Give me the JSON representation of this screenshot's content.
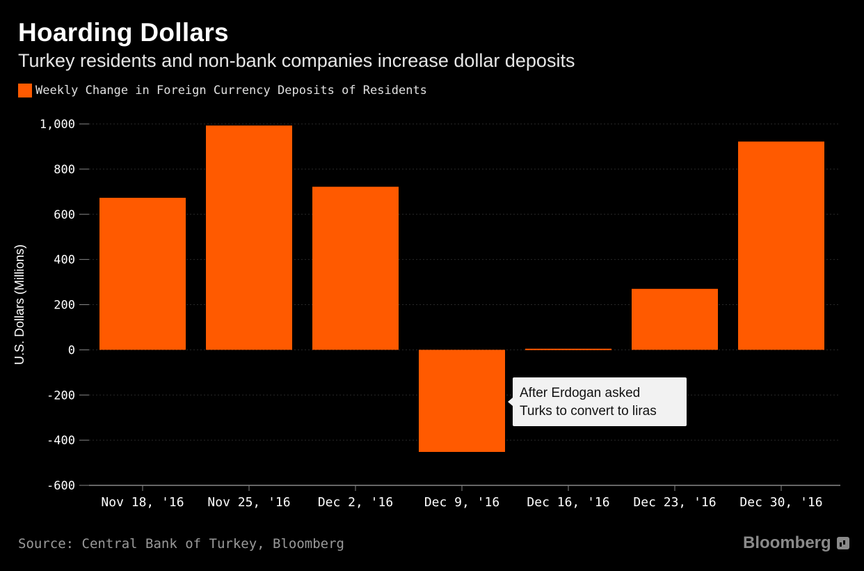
{
  "header": {
    "title": "Hoarding Dollars",
    "subtitle": "Turkey residents and non-bank companies increase dollar deposits"
  },
  "legend": {
    "label": "Weekly Change in Foreign Currency Deposits of Residents",
    "color": "#ff5a00"
  },
  "footer": {
    "source": "Source: Central Bank of Turkey, Bloomberg",
    "brand": "Bloomberg"
  },
  "annotation": {
    "line1": "After Erdogan asked",
    "line2": "Turks to convert to liras",
    "category": "Dec 9, '16"
  },
  "colors": {
    "bar": "#ff5a00",
    "background": "#000000",
    "axis": "#888888",
    "grid": "#2a2a2a"
  },
  "chart_data": {
    "type": "bar",
    "title": "Hoarding Dollars",
    "subtitle": "Turkey residents and non-bank companies increase dollar deposits",
    "categories": [
      "Nov 18, '16",
      "Nov 25, '16",
      "Dec 2, '16",
      "Dec 9, '16",
      "Dec 16, '16",
      "Dec 23, '16",
      "Dec 30, '16"
    ],
    "series": [
      {
        "name": "Weekly Change in Foreign Currency Deposits of Residents",
        "values": [
          673,
          993,
          722,
          -452,
          5,
          270,
          922
        ]
      }
    ],
    "xlabel": "",
    "ylabel": "U.S. Dollars (Millions)",
    "ylim": [
      -600,
      1000
    ],
    "yticks": [
      -600,
      -400,
      -200,
      0,
      200,
      400,
      600,
      800,
      1000
    ],
    "ytick_labels": [
      "-600",
      "-400",
      "-200",
      "0",
      "200",
      "400",
      "600",
      "800",
      "1,000"
    ],
    "grid": true,
    "legend_position": "top-left"
  }
}
